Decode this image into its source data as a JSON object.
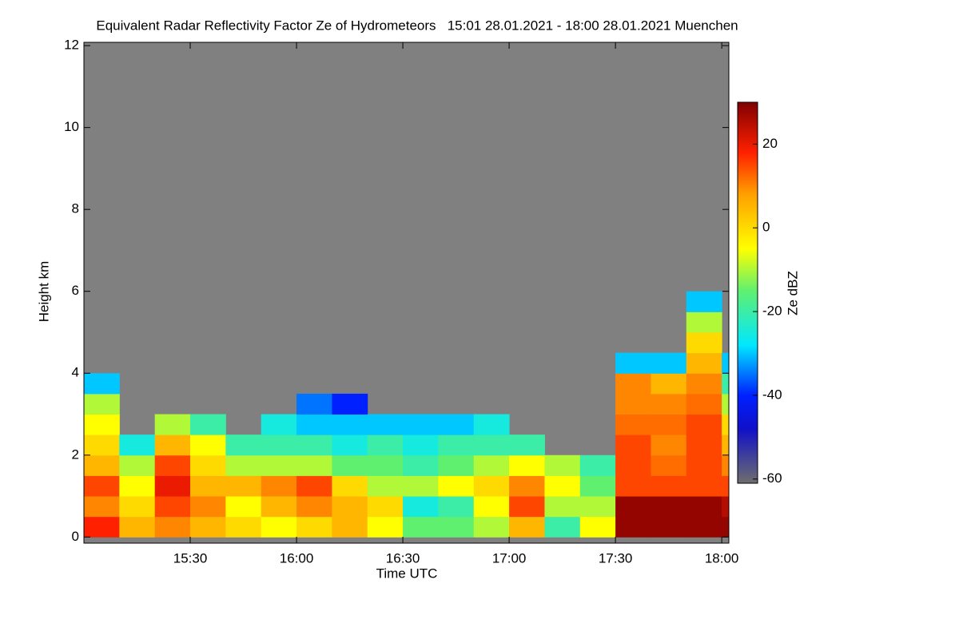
{
  "chart_data": {
    "type": "heatmap",
    "title": "Equivalent Radar Reflectivity Factor Ze of Hydrometeors   15:01 28.01.2021 - 18:00 28.01.2021 Muenchen",
    "x_label": "Time UTC",
    "y_label": "Height km",
    "colorbar_label": "Ze dBZ",
    "background_color": "#808080",
    "xlim": [
      0,
      182
    ],
    "xticks": [
      {
        "value": 30,
        "label": "15:30"
      },
      {
        "value": 60,
        "label": "16:00"
      },
      {
        "value": 90,
        "label": "16:30"
      },
      {
        "value": 120,
        "label": "17:00"
      },
      {
        "value": 150,
        "label": "17:30"
      },
      {
        "value": 180,
        "label": "18:00"
      }
    ],
    "ylim": [
      -0.15,
      12.08
    ],
    "yticks": [
      0,
      2,
      4,
      6,
      8,
      10,
      12
    ],
    "clim": [
      -61,
      30
    ],
    "cticks": [
      -60,
      -40,
      -20,
      0,
      20
    ],
    "colormap": [
      [
        -61,
        "#6e6e6e"
      ],
      [
        -48,
        "#1010c8"
      ],
      [
        -40,
        "#0020ff"
      ],
      [
        -28,
        "#00e8ff"
      ],
      [
        -15,
        "#60f070"
      ],
      [
        -5,
        "#ffff00"
      ],
      [
        8,
        "#ffa000"
      ],
      [
        18,
        "#ff2000"
      ],
      [
        30,
        "#800000"
      ]
    ],
    "x_edges": [
      0,
      10,
      20,
      30,
      40,
      50,
      60,
      70,
      80,
      90,
      100,
      110,
      120,
      130,
      140,
      150,
      160,
      170,
      180,
      182
    ],
    "y_edges": [
      0,
      0.5,
      1,
      1.5,
      2,
      2.5,
      3,
      3.5,
      4,
      4.5,
      5,
      5.5,
      6
    ],
    "z": [
      [
        18,
        10,
        15,
        5,
        0,
        -5,
        -10,
        -30,
        null,
        null,
        null,
        null
      ],
      [
        5,
        0,
        -5,
        -10,
        -25,
        null,
        null,
        null,
        null,
        null,
        null,
        null
      ],
      [
        10,
        15,
        20,
        15,
        5,
        -10,
        null,
        null,
        null,
        null,
        null,
        null
      ],
      [
        5,
        10,
        5,
        0,
        -5,
        -20,
        null,
        null,
        null,
        null,
        null,
        null
      ],
      [
        0,
        -5,
        5,
        -10,
        -20,
        null,
        null,
        null,
        null,
        null,
        null,
        null
      ],
      [
        -5,
        5,
        10,
        -10,
        -20,
        -25,
        null,
        null,
        null,
        null,
        null,
        null
      ],
      [
        0,
        10,
        15,
        -10,
        -20,
        -30,
        -35,
        null,
        null,
        null,
        null,
        null
      ],
      [
        5,
        5,
        0,
        -15,
        -25,
        -30,
        -40,
        null,
        null,
        null,
        null,
        null
      ],
      [
        -5,
        0,
        -10,
        -15,
        -20,
        -30,
        null,
        null,
        null,
        null,
        null,
        null
      ],
      [
        -15,
        -25,
        -10,
        -20,
        -25,
        -30,
        null,
        null,
        null,
        null,
        null,
        null
      ],
      [
        -15,
        -20,
        -5,
        -15,
        -20,
        -30,
        null,
        null,
        null,
        null,
        null,
        null
      ],
      [
        -10,
        -5,
        0,
        -10,
        -20,
        -25,
        null,
        null,
        null,
        null,
        null,
        null
      ],
      [
        5,
        15,
        10,
        -5,
        -20,
        null,
        null,
        null,
        null,
        null,
        null,
        null
      ],
      [
        -20,
        -10,
        -5,
        -10,
        null,
        null,
        null,
        null,
        null,
        null,
        null,
        null
      ],
      [
        -5,
        -10,
        -15,
        -20,
        null,
        null,
        null,
        null,
        null,
        null,
        null,
        null
      ],
      [
        28,
        28,
        15,
        15,
        15,
        12,
        10,
        10,
        -30,
        null,
        null,
        null
      ],
      [
        28,
        28,
        15,
        12,
        10,
        12,
        10,
        5,
        -30,
        null,
        null,
        null
      ],
      [
        28,
        28,
        15,
        15,
        15,
        15,
        12,
        10,
        5,
        0,
        -10,
        -30
      ],
      [
        28,
        25,
        15,
        10,
        5,
        0,
        -10,
        -20,
        -30,
        null,
        null,
        null
      ]
    ]
  }
}
